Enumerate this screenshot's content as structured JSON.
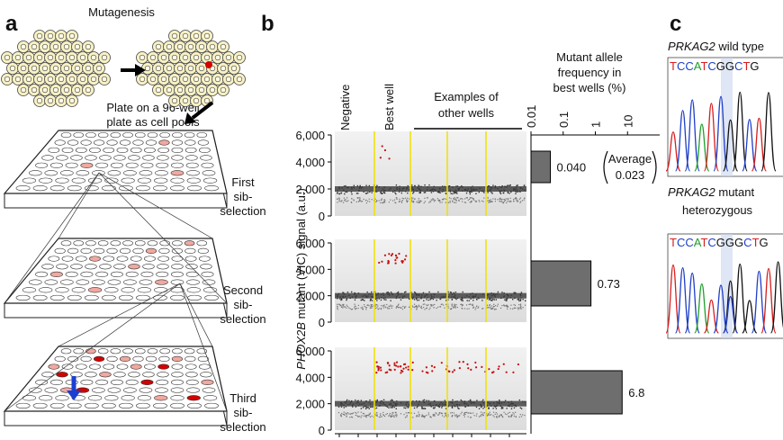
{
  "panel_a": {
    "label": "a",
    "title": "Mutagenesis",
    "plate_note": [
      "Plate on a 96-well",
      "plate as cell pools"
    ],
    "steps": [
      [
        "First",
        "sib-",
        "selection"
      ],
      [
        "Second",
        "sib-",
        "selection"
      ],
      [
        "Third",
        "sib-",
        "selection"
      ]
    ]
  },
  "panel_b": {
    "label": "b",
    "column_labels": {
      "negative": "Negative",
      "best_well": "Best well",
      "other_wells": [
        "Examples of",
        "other wells"
      ]
    },
    "y_label": {
      "gene": "PHOX2B",
      "rest": " mutant (VIC) signal (a.u.)"
    },
    "ylim": [
      0,
      6000
    ],
    "yticks": [
      0,
      {
        "value": 2000,
        "label": "2,000"
      },
      {
        "value": 4000,
        "label": "4,000"
      },
      {
        "value": 6000,
        "label": "6,000"
      }
    ],
    "frequency": {
      "type": "bar",
      "title": [
        "Mutant allele",
        "frequency in",
        "best wells (%)"
      ],
      "log": true,
      "xlim": [
        0.01,
        100
      ],
      "xticks": [
        0.01,
        0.1,
        1,
        10
      ],
      "color": "#6e6e6e",
      "values": [
        0.04,
        0.73,
        6.8
      ],
      "value_labels": [
        "0.040",
        "0.73",
        "6.8"
      ],
      "average": {
        "label": "Average",
        "value": 0.023
      }
    }
  },
  "panel_c": {
    "label": "c",
    "wild_type": {
      "gene": "PRKAG2",
      "rest": " wild type",
      "sequence": "TCCATCGGCTG"
    },
    "mutant": {
      "gene": "PRKAG2",
      "lines": [
        " mutant",
        "heterozygous"
      ],
      "sequence": "TCCATCGGGCTG"
    }
  }
}
